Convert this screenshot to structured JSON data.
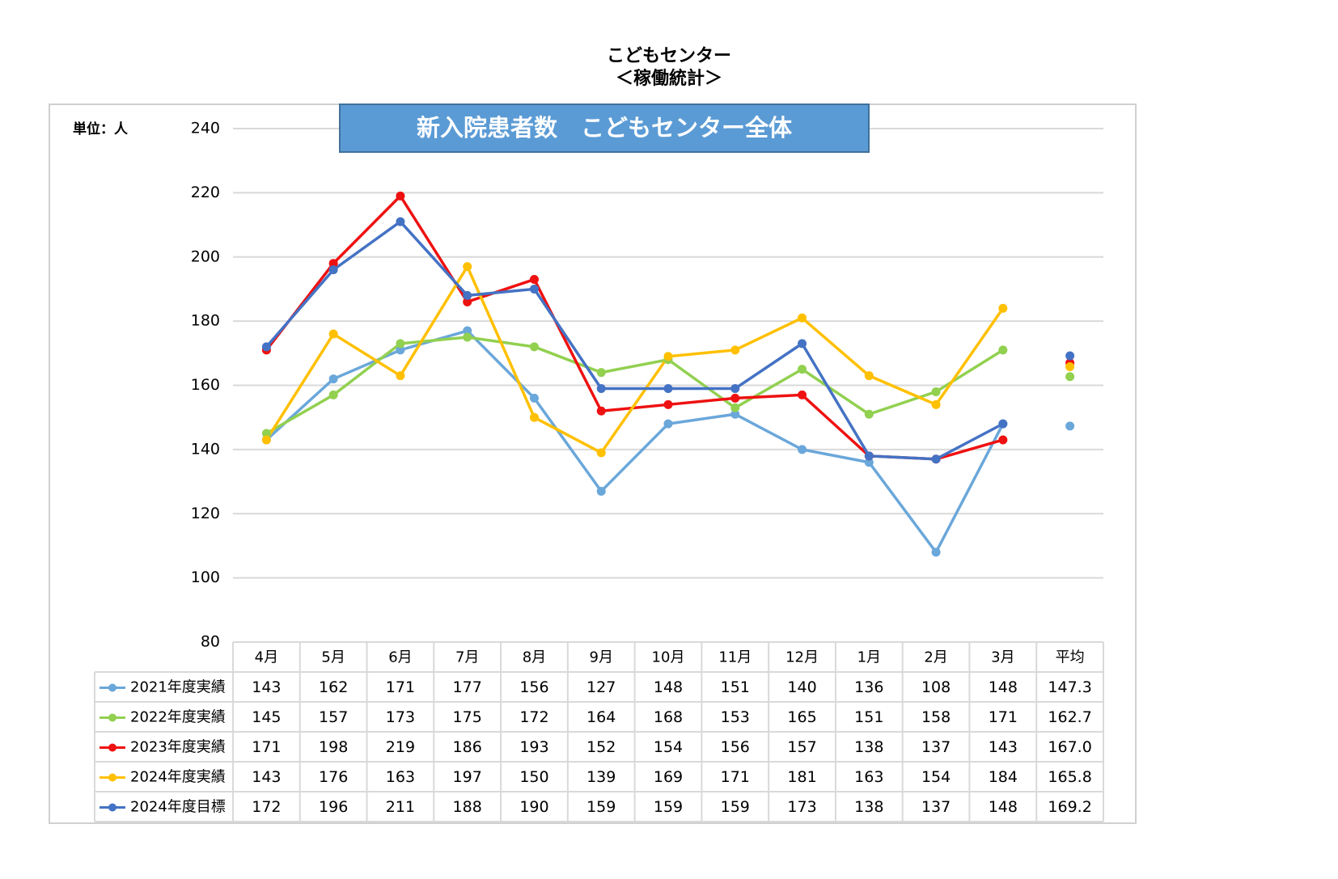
{
  "chart_data": {
    "type": "line",
    "title": "こどもセンター",
    "subtitle": "＜稼働統計＞",
    "chart_title": "新入院患者数　こどもセンター全体",
    "unit_label": "単位：人",
    "categories": [
      "4月",
      "5月",
      "6月",
      "7月",
      "8月",
      "9月",
      "10月",
      "11月",
      "12月",
      "1月",
      "2月",
      "3月",
      "平均"
    ],
    "ylim": [
      80,
      240
    ],
    "yticks": [
      80,
      100,
      120,
      140,
      160,
      180,
      200,
      220,
      240
    ],
    "grid": true,
    "series": [
      {
        "name": "2021年度実績",
        "color": "#6aa7da",
        "values": [
          143,
          162,
          171,
          177,
          156,
          127,
          148,
          151,
          140,
          136,
          108,
          148,
          147.3
        ],
        "value_labels": [
          "143",
          "162",
          "171",
          "177",
          "156",
          "127",
          "148",
          "151",
          "140",
          "136",
          "108",
          "148",
          "147.3"
        ]
      },
      {
        "name": "2022年度実績",
        "color": "#92d050",
        "values": [
          145,
          157,
          173,
          175,
          172,
          164,
          168,
          153,
          165,
          151,
          158,
          171,
          162.7
        ],
        "value_labels": [
          "145",
          "157",
          "173",
          "175",
          "172",
          "164",
          "168",
          "153",
          "165",
          "151",
          "158",
          "171",
          "162.7"
        ]
      },
      {
        "name": "2023年度実績",
        "color": "#ee1111",
        "values": [
          171,
          198,
          219,
          186,
          193,
          152,
          154,
          156,
          157,
          138,
          137,
          143,
          167
        ],
        "value_labels": [
          "171",
          "198",
          "219",
          "186",
          "193",
          "152",
          "154",
          "156",
          "157",
          "138",
          "137",
          "143",
          "167.0"
        ]
      },
      {
        "name": "2024年度実績",
        "color": "#ffc000",
        "values": [
          143,
          176,
          163,
          197,
          150,
          139,
          169,
          171,
          181,
          163,
          154,
          184,
          165.8
        ],
        "value_labels": [
          "143",
          "176",
          "163",
          "197",
          "150",
          "139",
          "169",
          "171",
          "181",
          "163",
          "154",
          "184",
          "165.8"
        ]
      },
      {
        "name": "2024年度目標",
        "color": "#4472c4",
        "values": [
          172,
          196,
          211,
          188,
          190,
          159,
          159,
          159,
          173,
          138,
          137,
          148,
          169.2
        ],
        "value_labels": [
          "172",
          "196",
          "211",
          "188",
          "190",
          "159",
          "159",
          "159",
          "173",
          "138",
          "137",
          "148",
          "169.2"
        ]
      }
    ]
  }
}
